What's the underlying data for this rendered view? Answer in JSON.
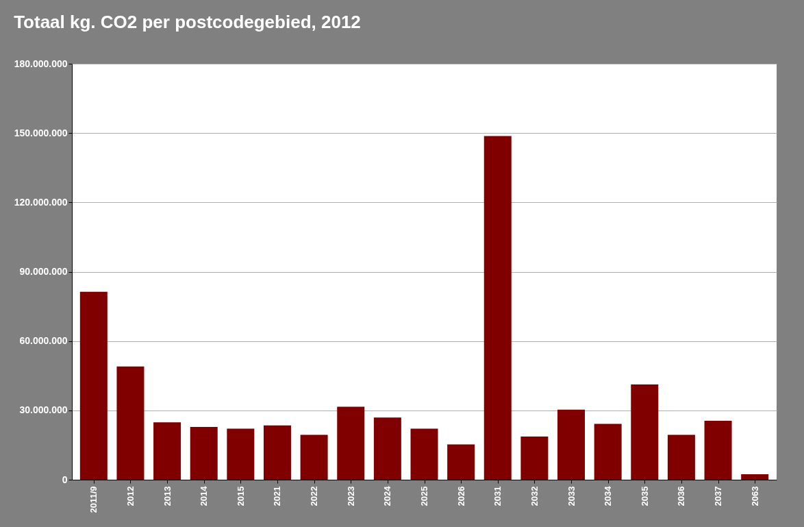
{
  "chart_data": {
    "type": "bar",
    "title": "Totaal kg. CO2 per postcodegebied, 2012",
    "categories": [
      "2011/9",
      "2012",
      "2013",
      "2014",
      "2015",
      "2021",
      "2022",
      "2023",
      "2024",
      "2025",
      "2026",
      "2031",
      "2032",
      "2033",
      "2034",
      "2035",
      "2036",
      "2037",
      "2063"
    ],
    "values": [
      81300000,
      49000000,
      24800000,
      22800000,
      22100000,
      23500000,
      19400000,
      31600000,
      26900000,
      22100000,
      15300000,
      148700000,
      18700000,
      30300000,
      24200000,
      41200000,
      19400000,
      25500000,
      2400000
    ],
    "color": "#800000",
    "ylim": [
      0,
      180000000
    ],
    "yticks": [
      {
        "value": 0,
        "label": "0"
      },
      {
        "value": 30000000,
        "label": "30.000.000"
      },
      {
        "value": 60000000,
        "label": "60.000.000"
      },
      {
        "value": 90000000,
        "label": "90.000.000"
      },
      {
        "value": 120000000,
        "label": "120.000.000"
      },
      {
        "value": 150000000,
        "label": "150.000.000"
      },
      {
        "value": 180000000,
        "label": "180.000.000"
      }
    ],
    "grid": "y"
  }
}
